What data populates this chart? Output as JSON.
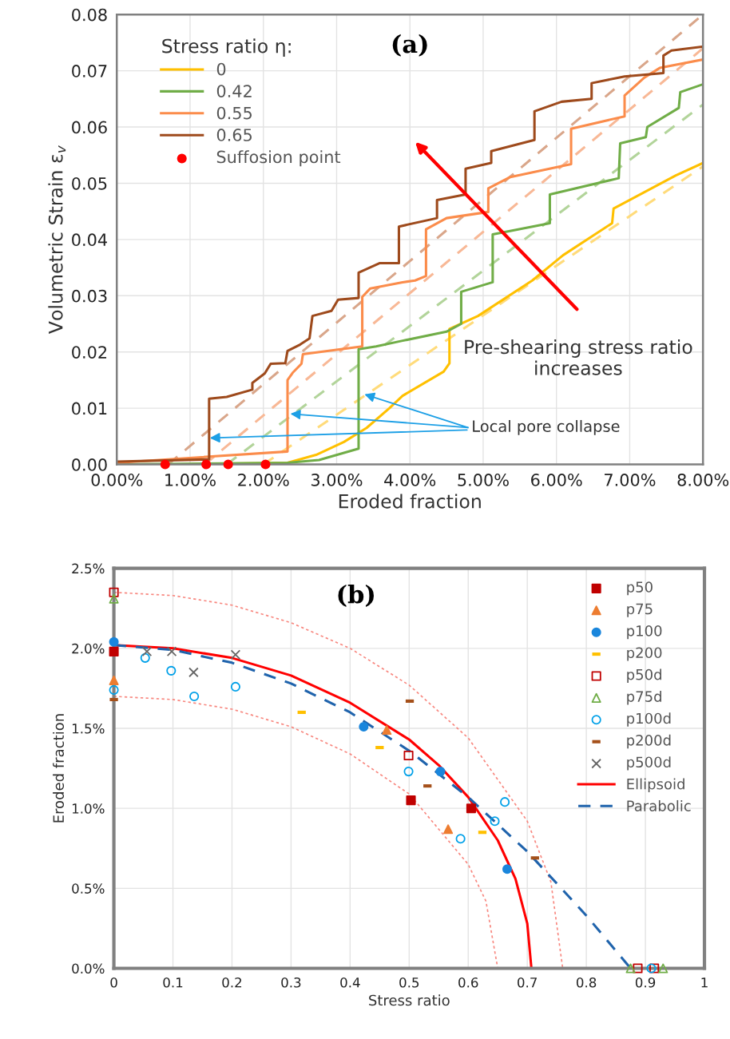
{
  "chart_data": [
    {
      "type": "line",
      "title": "(a)",
      "xlabel": "Eroded fraction",
      "ylabel": "Volumetric Strain ε$_{v}$",
      "legend_title": "Stress ratio η:",
      "legend": "top left",
      "grid": true,
      "xlim": [
        0,
        8
      ],
      "ylim": [
        0,
        0.08
      ],
      "xticks": [
        {
          "value": 0,
          "label": "0.00%"
        },
        {
          "value": 1,
          "label": "1.00%"
        },
        {
          "value": 2,
          "label": "2.00%"
        },
        {
          "value": 3,
          "label": "3.00%"
        },
        {
          "value": 4,
          "label": "4.00%"
        },
        {
          "value": 5,
          "label": "5.00%"
        },
        {
          "value": 6,
          "label": "6.00%"
        },
        {
          "value": 7,
          "label": "7.00%"
        },
        {
          "value": 8,
          "label": "8.00%"
        }
      ],
      "yticks": [
        {
          "value": 0,
          "label": "0.00"
        },
        {
          "value": 0.01,
          "label": "0.01"
        },
        {
          "value": 0.02,
          "label": "0.02"
        },
        {
          "value": 0.03,
          "label": "0.03"
        },
        {
          "value": 0.04,
          "label": "0.04"
        },
        {
          "value": 0.05,
          "label": "0.05"
        },
        {
          "value": 0.06,
          "label": "0.06"
        },
        {
          "value": 0.07,
          "label": "0.07"
        },
        {
          "value": 0.08,
          "label": "0.08"
        }
      ],
      "annotations": [
        "Pre-shearing stress ratio\nincreases",
        {
          "text": "Local pore collapse",
          "x": 1.27,
          "y": 0.0047
        }
      ],
      "series": [
        {
          "type": "line",
          "line_style": "dashed",
          "color": "#d9a68a",
          "x": [
            0.7,
            8.0
          ],
          "values": [
            0,
            0.08
          ]
        },
        {
          "type": "line",
          "line_style": "dashed",
          "color": "#f8b896",
          "x": [
            1.2,
            8.0
          ],
          "values": [
            0,
            0.074
          ]
        },
        {
          "type": "line",
          "line_style": "dashed",
          "color": "#b2d49a",
          "x": [
            1.5,
            8.0
          ],
          "values": [
            0,
            0.064
          ]
        },
        {
          "type": "line",
          "line_style": "dashed",
          "color": "#ffdb7a",
          "x": [
            2.0,
            8.0
          ],
          "values": [
            0,
            0.053
          ]
        },
        {
          "name": "0",
          "type": "line",
          "line_style": "solid",
          "color": "#ffc000",
          "x": [
            0.89,
            2.33,
            2.72,
            3.1,
            3.41,
            3.72,
            3.9,
            4.46,
            4.54,
            4.54,
            4.93,
            5.67,
            6.09,
            6.76,
            6.78,
            7.63,
            8.0
          ],
          "values": [
            0,
            0.0003,
            0.0017,
            0.004,
            0.0065,
            0.01,
            0.0122,
            0.0165,
            0.018,
            0.0241,
            0.0264,
            0.0327,
            0.0372,
            0.0429,
            0.0455,
            0.0514,
            0.0536
          ]
        },
        {
          "name": "0.42",
          "type": "line",
          "line_style": "solid",
          "color": "#70ad47",
          "x": [
            0,
            2.33,
            2.76,
            3.3,
            3.3,
            3.54,
            3.9,
            4.5,
            4.7,
            4.7,
            5.13,
            5.13,
            5.91,
            5.91,
            6.85,
            6.87,
            7.22,
            7.24,
            7.67,
            7.69,
            8.0
          ],
          "values": [
            0,
            0.0003,
            0.0008,
            0.0028,
            0.0205,
            0.021,
            0.022,
            0.0236,
            0.025,
            0.0307,
            0.0324,
            0.0409,
            0.0429,
            0.048,
            0.0509,
            0.0571,
            0.0582,
            0.06,
            0.0634,
            0.0662,
            0.0676
          ]
        },
        {
          "name": "0.55",
          "type": "line",
          "line_style": "solid",
          "color": "#fb8c4b",
          "x": [
            0,
            2.33,
            2.33,
            2.4,
            2.52,
            2.54,
            3.35,
            3.35,
            3.46,
            3.9,
            4.07,
            4.22,
            4.22,
            4.5,
            5.07,
            5.07,
            5.37,
            6.2,
            6.2,
            6.93,
            6.93,
            7.2,
            7.41,
            8.0
          ],
          "values": [
            0.0003,
            0.0023,
            0.015,
            0.0163,
            0.0179,
            0.0196,
            0.021,
            0.0298,
            0.0313,
            0.0324,
            0.0327,
            0.0335,
            0.0418,
            0.0438,
            0.0449,
            0.0491,
            0.0511,
            0.0534,
            0.0597,
            0.0619,
            0.0656,
            0.0688,
            0.0705,
            0.072
          ]
        },
        {
          "name": "0.65",
          "type": "line",
          "line_style": "solid",
          "color": "#9e4a1c",
          "x": [
            0,
            1.26,
            1.26,
            1.5,
            1.85,
            1.85,
            2.02,
            2.1,
            2.3,
            2.33,
            2.5,
            2.63,
            2.67,
            2.93,
            3.02,
            3.3,
            3.3,
            3.59,
            3.85,
            3.85,
            4.37,
            4.37,
            4.76,
            4.76,
            5.11,
            5.11,
            5.7,
            5.7,
            6.07,
            6.48,
            6.48,
            6.93,
            7.46,
            7.46,
            7.57,
            8.0
          ],
          "values": [
            0.0005,
            0.0009,
            0.0117,
            0.012,
            0.0133,
            0.0145,
            0.0162,
            0.0179,
            0.018,
            0.0202,
            0.0213,
            0.0224,
            0.0264,
            0.0273,
            0.0293,
            0.0296,
            0.0341,
            0.0358,
            0.0358,
            0.0423,
            0.0438,
            0.047,
            0.048,
            0.0526,
            0.0536,
            0.0557,
            0.0577,
            0.0628,
            0.0645,
            0.065,
            0.0678,
            0.069,
            0.0696,
            0.0727,
            0.0736,
            0.0743
          ]
        },
        {
          "name": "Suffosion point",
          "type": "scatter",
          "marker": "circle",
          "color": "#ff0000",
          "x": [
            0.66,
            1.22,
            1.52,
            2.03
          ],
          "values": [
            0,
            0,
            0,
            0
          ]
        }
      ]
    },
    {
      "type": "scatter",
      "title": "(b)",
      "xlabel": "Stress ratio",
      "ylabel": "Eroded fraction",
      "legend": "top right",
      "grid": true,
      "xlim": [
        0,
        1
      ],
      "ylim": [
        0,
        2.5
      ],
      "xticks": [
        0,
        0.1,
        0.2,
        0.3,
        0.4,
        0.5,
        0.6,
        0.7,
        0.8,
        0.9,
        1
      ],
      "yticks": [
        {
          "value": 0,
          "label": "0.0%"
        },
        {
          "value": 0.5,
          "label": "0.5%"
        },
        {
          "value": 1.0,
          "label": "1.0%"
        },
        {
          "value": 1.5,
          "label": "1.5%"
        },
        {
          "value": 2.0,
          "label": "2.0%"
        },
        {
          "value": 2.5,
          "label": "2.5%"
        }
      ],
      "series": [
        {
          "type": "line",
          "line_style": "dotted",
          "color": "#f8877f",
          "x": [
            0,
            0.1,
            0.2,
            0.3,
            0.4,
            0.5,
            0.6,
            0.7,
            0.74,
            0.76
          ],
          "values": [
            2.35,
            2.33,
            2.27,
            2.16,
            2.0,
            1.77,
            1.44,
            0.92,
            0.54,
            0
          ]
        },
        {
          "type": "line",
          "line_style": "dotted",
          "color": "#f8877f",
          "x": [
            0,
            0.1,
            0.2,
            0.3,
            0.4,
            0.5,
            0.6,
            0.63,
            0.65
          ],
          "values": [
            1.7,
            1.68,
            1.62,
            1.51,
            1.34,
            1.09,
            0.65,
            0.42,
            0
          ]
        },
        {
          "name": "p50",
          "marker": "square",
          "color": "#c00000",
          "x": [
            0,
            0.503,
            0.605
          ],
          "values": [
            1.98,
            1.05,
            1.0
          ]
        },
        {
          "name": "p75",
          "marker": "triangle",
          "color": "#ed7d31",
          "x": [
            0,
            0.462,
            0.566
          ],
          "values": [
            1.8,
            1.49,
            0.87
          ]
        },
        {
          "name": "p100",
          "marker": "circle",
          "color": "#1a86dc",
          "x": [
            0,
            0.423,
            0.553,
            0.666
          ],
          "values": [
            2.04,
            1.51,
            1.23,
            0.62
          ]
        },
        {
          "name": "p200",
          "color": "#ffc000",
          "x": [
            0.318,
            0.45,
            0.624
          ],
          "values": [
            1.6,
            1.38,
            0.85
          ]
        },
        {
          "name": "p50d",
          "marker": "square-open",
          "color": "#c00000",
          "x": [
            0,
            0.499,
            0.887,
            0.915
          ],
          "values": [
            2.35,
            1.33,
            0,
            0
          ]
        },
        {
          "name": "p75d",
          "marker": "triangle-open",
          "color": "#70ad47",
          "x": [
            0,
            0.875,
            0.93
          ],
          "values": [
            2.31,
            0,
            0
          ]
        },
        {
          "name": "p100d",
          "marker": "circle-open",
          "color": "#00a0e8",
          "x": [
            0,
            0.053,
            0.097,
            0.136,
            0.206,
            0.499,
            0.587,
            0.645,
            0.662,
            0.91
          ],
          "values": [
            1.74,
            1.94,
            1.86,
            1.7,
            1.76,
            1.23,
            0.81,
            0.92,
            1.04,
            0
          ]
        },
        {
          "name": "p200d",
          "color": "#a5501a",
          "x": [
            0,
            0.501,
            0.531,
            0.713
          ],
          "values": [
            1.68,
            1.67,
            1.14,
            0.69
          ]
        },
        {
          "name": "p500d",
          "marker": "cross",
          "color": "#666666",
          "x": [
            0.056,
            0.098,
            0.135,
            0.206
          ],
          "values": [
            1.98,
            1.98,
            1.85,
            1.96
          ]
        },
        {
          "name": "Ellipsoid",
          "type": "line",
          "line_style": "solid",
          "color": "#ff0000",
          "x": [
            0,
            0.1,
            0.2,
            0.3,
            0.4,
            0.5,
            0.55,
            0.6,
            0.65,
            0.68,
            0.7,
            0.707
          ],
          "values": [
            2.02,
            2.0,
            1.94,
            1.83,
            1.66,
            1.43,
            1.27,
            1.07,
            0.8,
            0.56,
            0.28,
            0
          ]
        },
        {
          "name": "Parabolic",
          "type": "line",
          "line_style": "dashed",
          "color": "#1f63ac",
          "x": [
            0,
            0.1,
            0.2,
            0.3,
            0.4,
            0.5,
            0.6,
            0.7,
            0.8,
            0.875
          ],
          "values": [
            2.02,
            1.99,
            1.91,
            1.78,
            1.6,
            1.36,
            1.07,
            0.73,
            0.33,
            0
          ]
        }
      ]
    }
  ]
}
